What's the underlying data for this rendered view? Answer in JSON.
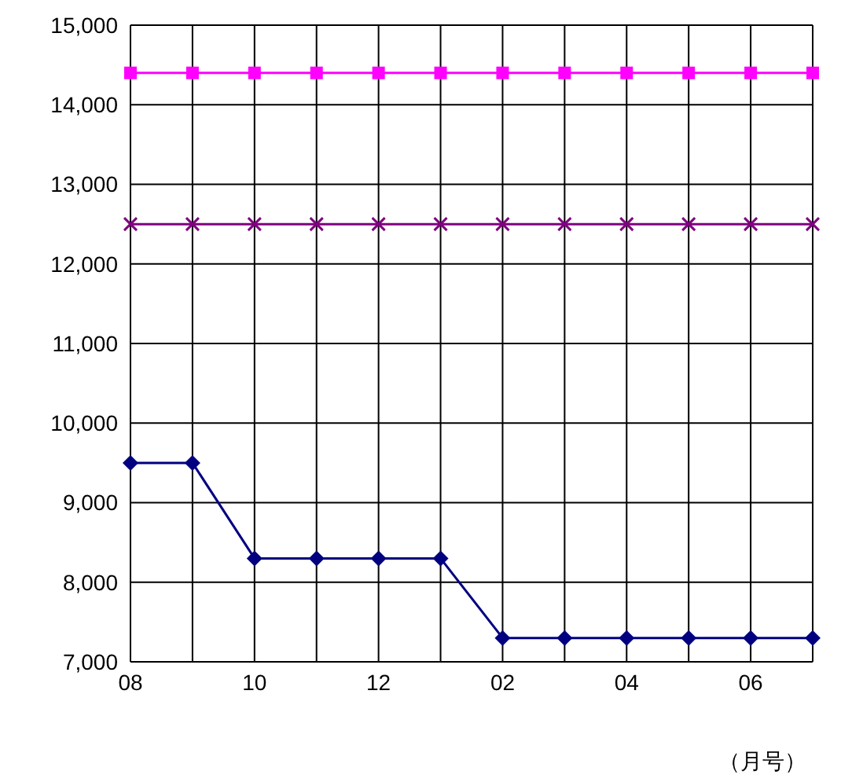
{
  "chart_data": {
    "type": "line",
    "xlabel": "（月号）",
    "categories": [
      "08",
      null,
      "10",
      null,
      "12",
      null,
      "02",
      null,
      "04",
      null,
      "06",
      null
    ],
    "series": [
      {
        "color": "#ff00ff",
        "marker": "square",
        "values": [
          14400,
          14400,
          14400,
          14400,
          14400,
          14400,
          14400,
          14400,
          14400,
          14400,
          14400,
          14400
        ]
      },
      {
        "color": "#800080",
        "marker": "cross",
        "values": [
          12500,
          12500,
          12500,
          12500,
          12500,
          12500,
          12500,
          12500,
          12500,
          12500,
          12500,
          12500
        ]
      },
      {
        "color": "#000080",
        "marker": "diamond",
        "values": [
          9500,
          9500,
          8300,
          8300,
          8300,
          8300,
          7300,
          7300,
          7300,
          7300,
          7300,
          7300
        ]
      }
    ],
    "ylim": [
      7000,
      15000
    ],
    "yticks": [
      {
        "value": 7000,
        "label": "7,000"
      },
      {
        "value": 8000,
        "label": "8,000"
      },
      {
        "value": 9000,
        "label": "9,000"
      },
      {
        "value": 10000,
        "label": "10,000"
      },
      {
        "value": 11000,
        "label": "11,000"
      },
      {
        "value": 12000,
        "label": "12,000"
      },
      {
        "value": 13000,
        "label": "13,000"
      },
      {
        "value": 14000,
        "label": "14,000"
      },
      {
        "value": 15000,
        "label": "15,000"
      }
    ],
    "grid": true,
    "legend": false
  }
}
